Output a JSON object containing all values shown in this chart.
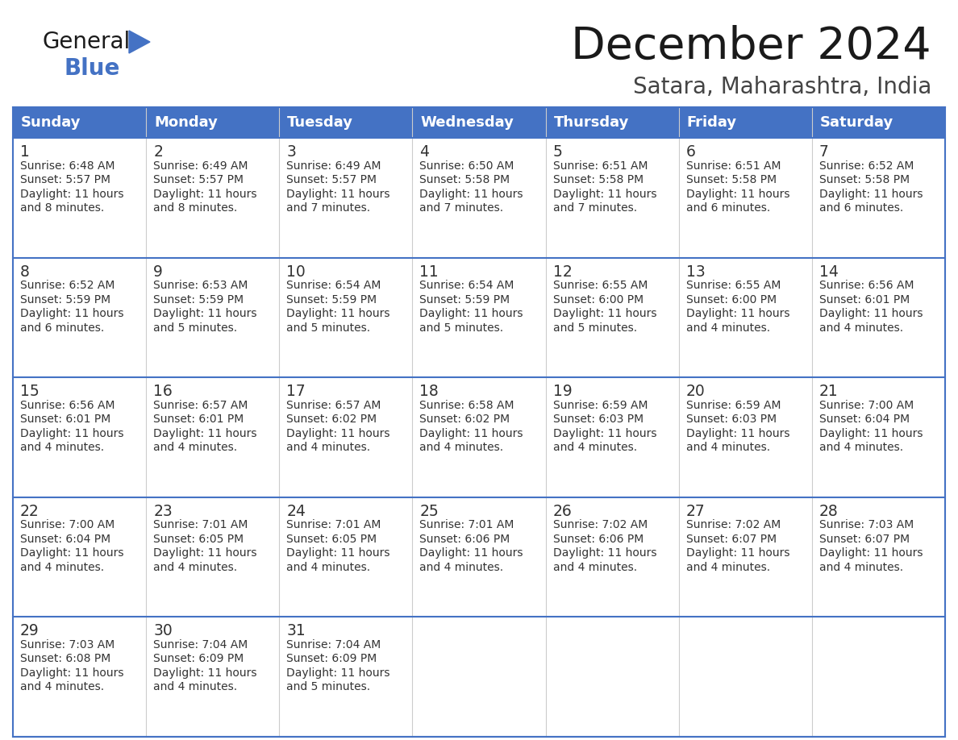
{
  "title": "December 2024",
  "subtitle": "Satara, Maharashtra, India",
  "days_of_week": [
    "Sunday",
    "Monday",
    "Tuesday",
    "Wednesday",
    "Thursday",
    "Friday",
    "Saturday"
  ],
  "header_bg_color": "#4472C4",
  "header_text_color": "#FFFFFF",
  "cell_bg_color": "#FFFFFF",
  "cell_border_color": "#4472C4",
  "cell_line_color": "#AAAAAA",
  "day_number_color": "#333333",
  "cell_text_color": "#333333",
  "title_color": "#1a1a1a",
  "subtitle_color": "#444444",
  "logo_general_color": "#1a1a1a",
  "logo_blue_color": "#4472C4",
  "calendar_data": [
    [
      {
        "day": 1,
        "sunrise": "6:48 AM",
        "sunset": "5:57 PM",
        "daylight_mins": "8 minutes."
      },
      {
        "day": 2,
        "sunrise": "6:49 AM",
        "sunset": "5:57 PM",
        "daylight_mins": "8 minutes."
      },
      {
        "day": 3,
        "sunrise": "6:49 AM",
        "sunset": "5:57 PM",
        "daylight_mins": "7 minutes."
      },
      {
        "day": 4,
        "sunrise": "6:50 AM",
        "sunset": "5:58 PM",
        "daylight_mins": "7 minutes."
      },
      {
        "day": 5,
        "sunrise": "6:51 AM",
        "sunset": "5:58 PM",
        "daylight_mins": "7 minutes."
      },
      {
        "day": 6,
        "sunrise": "6:51 AM",
        "sunset": "5:58 PM",
        "daylight_mins": "6 minutes."
      },
      {
        "day": 7,
        "sunrise": "6:52 AM",
        "sunset": "5:58 PM",
        "daylight_mins": "6 minutes."
      }
    ],
    [
      {
        "day": 8,
        "sunrise": "6:52 AM",
        "sunset": "5:59 PM",
        "daylight_mins": "6 minutes."
      },
      {
        "day": 9,
        "sunrise": "6:53 AM",
        "sunset": "5:59 PM",
        "daylight_mins": "5 minutes."
      },
      {
        "day": 10,
        "sunrise": "6:54 AM",
        "sunset": "5:59 PM",
        "daylight_mins": "5 minutes."
      },
      {
        "day": 11,
        "sunrise": "6:54 AM",
        "sunset": "5:59 PM",
        "daylight_mins": "5 minutes."
      },
      {
        "day": 12,
        "sunrise": "6:55 AM",
        "sunset": "6:00 PM",
        "daylight_mins": "5 minutes."
      },
      {
        "day": 13,
        "sunrise": "6:55 AM",
        "sunset": "6:00 PM",
        "daylight_mins": "4 minutes."
      },
      {
        "day": 14,
        "sunrise": "6:56 AM",
        "sunset": "6:01 PM",
        "daylight_mins": "4 minutes."
      }
    ],
    [
      {
        "day": 15,
        "sunrise": "6:56 AM",
        "sunset": "6:01 PM",
        "daylight_mins": "4 minutes."
      },
      {
        "day": 16,
        "sunrise": "6:57 AM",
        "sunset": "6:01 PM",
        "daylight_mins": "4 minutes."
      },
      {
        "day": 17,
        "sunrise": "6:57 AM",
        "sunset": "6:02 PM",
        "daylight_mins": "4 minutes."
      },
      {
        "day": 18,
        "sunrise": "6:58 AM",
        "sunset": "6:02 PM",
        "daylight_mins": "4 minutes."
      },
      {
        "day": 19,
        "sunrise": "6:59 AM",
        "sunset": "6:03 PM",
        "daylight_mins": "4 minutes."
      },
      {
        "day": 20,
        "sunrise": "6:59 AM",
        "sunset": "6:03 PM",
        "daylight_mins": "4 minutes."
      },
      {
        "day": 21,
        "sunrise": "7:00 AM",
        "sunset": "6:04 PM",
        "daylight_mins": "4 minutes."
      }
    ],
    [
      {
        "day": 22,
        "sunrise": "7:00 AM",
        "sunset": "6:04 PM",
        "daylight_mins": "4 minutes."
      },
      {
        "day": 23,
        "sunrise": "7:01 AM",
        "sunset": "6:05 PM",
        "daylight_mins": "4 minutes."
      },
      {
        "day": 24,
        "sunrise": "7:01 AM",
        "sunset": "6:05 PM",
        "daylight_mins": "4 minutes."
      },
      {
        "day": 25,
        "sunrise": "7:01 AM",
        "sunset": "6:06 PM",
        "daylight_mins": "4 minutes."
      },
      {
        "day": 26,
        "sunrise": "7:02 AM",
        "sunset": "6:06 PM",
        "daylight_mins": "4 minutes."
      },
      {
        "day": 27,
        "sunrise": "7:02 AM",
        "sunset": "6:07 PM",
        "daylight_mins": "4 minutes."
      },
      {
        "day": 28,
        "sunrise": "7:03 AM",
        "sunset": "6:07 PM",
        "daylight_mins": "4 minutes."
      }
    ],
    [
      {
        "day": 29,
        "sunrise": "7:03 AM",
        "sunset": "6:08 PM",
        "daylight_mins": "4 minutes."
      },
      {
        "day": 30,
        "sunrise": "7:04 AM",
        "sunset": "6:09 PM",
        "daylight_mins": "4 minutes."
      },
      {
        "day": 31,
        "sunrise": "7:04 AM",
        "sunset": "6:09 PM",
        "daylight_mins": "5 minutes."
      },
      null,
      null,
      null,
      null
    ]
  ]
}
